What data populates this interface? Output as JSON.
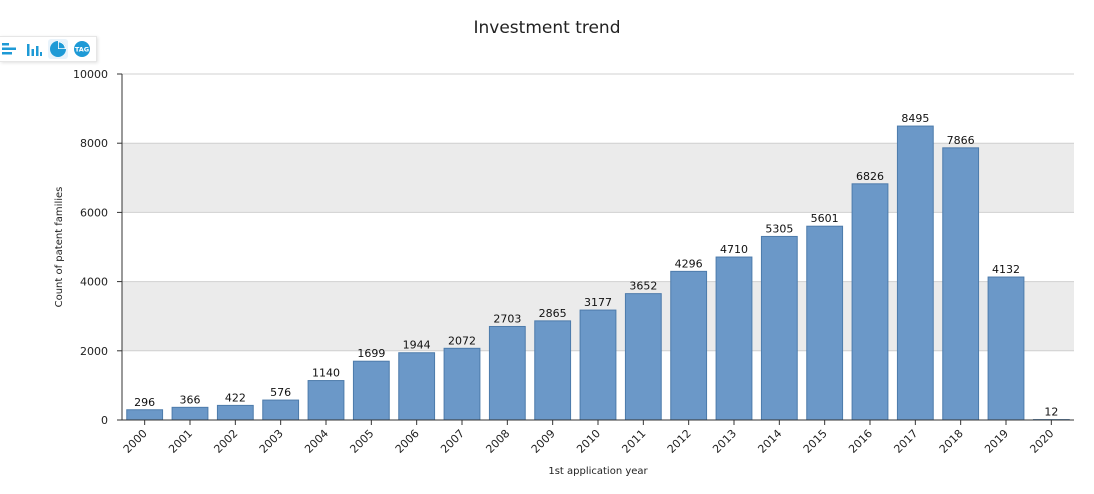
{
  "toolbar": {
    "buttons": [
      {
        "name": "horizontal-bar-chart-icon",
        "active": false
      },
      {
        "name": "vertical-bar-chart-icon",
        "active": false
      },
      {
        "name": "pie-chart-icon",
        "active": true
      },
      {
        "name": "tag-cloud-icon",
        "active": false
      }
    ],
    "tag_label": "TAG"
  },
  "colors": {
    "bar_fill": "#6b98c8",
    "bar_stroke": "#4d7bab",
    "band_gray": "#ebebeb",
    "band_white": "#ffffff",
    "grid": "#d0d0d0",
    "axis": "#333333",
    "icon": "#1e9ad6"
  },
  "chart_data": {
    "type": "bar",
    "title": "Investment trend",
    "xlabel": "1st application year",
    "ylabel": "Count of patent families",
    "categories": [
      "2000",
      "2001",
      "2002",
      "2003",
      "2004",
      "2005",
      "2006",
      "2007",
      "2008",
      "2009",
      "2010",
      "2011",
      "2012",
      "2013",
      "2014",
      "2015",
      "2016",
      "2017",
      "2018",
      "2019",
      "2020"
    ],
    "values": [
      296,
      366,
      422,
      576,
      1140,
      1699,
      1944,
      2072,
      2703,
      2865,
      3177,
      3652,
      4296,
      4710,
      5305,
      5601,
      6826,
      8495,
      7866,
      4132,
      12
    ],
    "ylim": [
      0,
      10000
    ],
    "yticks": [
      0,
      2000,
      4000,
      6000,
      8000,
      10000
    ],
    "grid": true,
    "alternating_bands": true,
    "data_labels": true,
    "legend": "none"
  }
}
